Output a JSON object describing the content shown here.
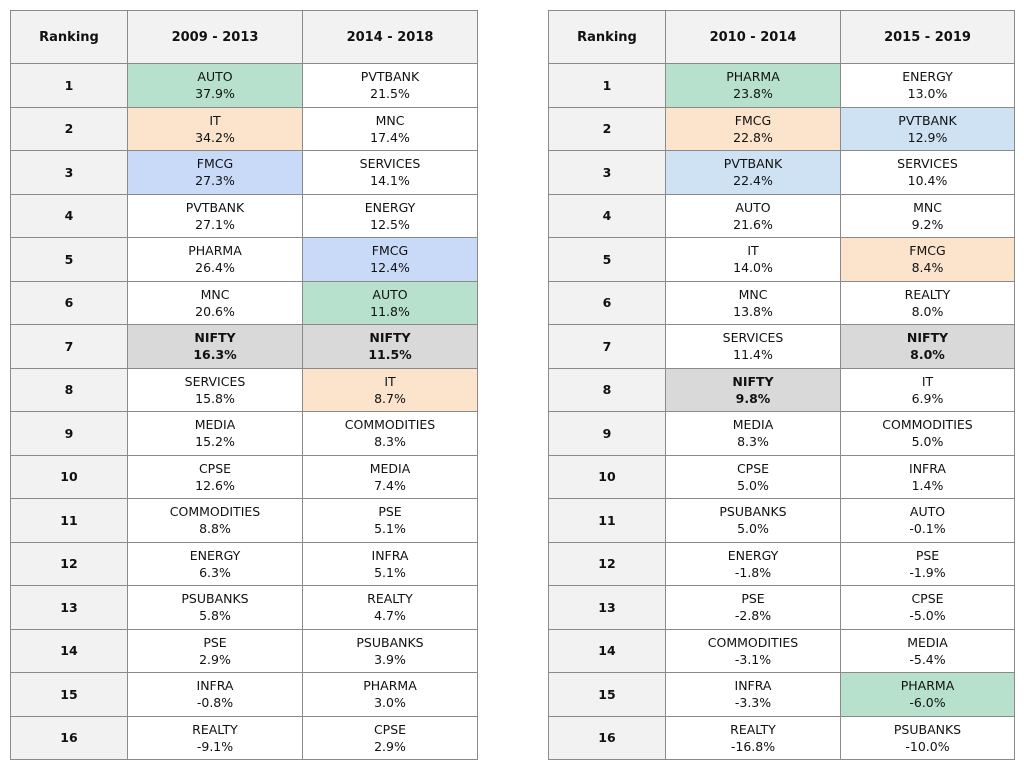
{
  "colors": {
    "green": "#b7e1cd",
    "peach": "#fbe3cc",
    "blue": "#c9daf8",
    "lightblue": "#cfe2f3",
    "gray": "#d9d9d9",
    "header_bg": "#f2f2f2"
  },
  "chart_data": [
    {
      "type": "table",
      "columns": [
        "Ranking",
        "2009 - 2013",
        "2014 - 2018"
      ],
      "rows": [
        {
          "rank": "1",
          "cells": [
            {
              "sector": "AUTO",
              "value": "37.9%",
              "hl": "green"
            },
            {
              "sector": "PVTBANK",
              "value": "21.5%"
            }
          ]
        },
        {
          "rank": "2",
          "cells": [
            {
              "sector": "IT",
              "value": "34.2%",
              "hl": "peach"
            },
            {
              "sector": "MNC",
              "value": "17.4%"
            }
          ]
        },
        {
          "rank": "3",
          "cells": [
            {
              "sector": "FMCG",
              "value": "27.3%",
              "hl": "blue"
            },
            {
              "sector": "SERVICES",
              "value": "14.1%"
            }
          ]
        },
        {
          "rank": "4",
          "cells": [
            {
              "sector": "PVTBANK",
              "value": "27.1%"
            },
            {
              "sector": "ENERGY",
              "value": "12.5%"
            }
          ]
        },
        {
          "rank": "5",
          "cells": [
            {
              "sector": "PHARMA",
              "value": "26.4%"
            },
            {
              "sector": "FMCG",
              "value": "12.4%",
              "hl": "blue"
            }
          ]
        },
        {
          "rank": "6",
          "cells": [
            {
              "sector": "MNC",
              "value": "20.6%"
            },
            {
              "sector": "AUTO",
              "value": "11.8%",
              "hl": "green"
            }
          ]
        },
        {
          "rank": "7",
          "cells": [
            {
              "sector": "NIFTY",
              "value": "16.3%",
              "hl": "gray",
              "bold": true
            },
            {
              "sector": "NIFTY",
              "value": "11.5%",
              "hl": "gray",
              "bold": true
            }
          ]
        },
        {
          "rank": "8",
          "cells": [
            {
              "sector": "SERVICES",
              "value": "15.8%"
            },
            {
              "sector": "IT",
              "value": "8.7%",
              "hl": "peach"
            }
          ]
        },
        {
          "rank": "9",
          "cells": [
            {
              "sector": "MEDIA",
              "value": "15.2%"
            },
            {
              "sector": "COMMODITIES",
              "value": "8.3%"
            }
          ]
        },
        {
          "rank": "10",
          "cells": [
            {
              "sector": "CPSE",
              "value": "12.6%"
            },
            {
              "sector": "MEDIA",
              "value": "7.4%"
            }
          ]
        },
        {
          "rank": "11",
          "cells": [
            {
              "sector": "COMMODITIES",
              "value": "8.8%"
            },
            {
              "sector": "PSE",
              "value": "5.1%"
            }
          ]
        },
        {
          "rank": "12",
          "cells": [
            {
              "sector": "ENERGY",
              "value": "6.3%"
            },
            {
              "sector": "INFRA",
              "value": "5.1%"
            }
          ]
        },
        {
          "rank": "13",
          "cells": [
            {
              "sector": "PSUBANKS",
              "value": "5.8%"
            },
            {
              "sector": "REALTY",
              "value": "4.7%"
            }
          ]
        },
        {
          "rank": "14",
          "cells": [
            {
              "sector": "PSE",
              "value": "2.9%"
            },
            {
              "sector": "PSUBANKS",
              "value": "3.9%"
            }
          ]
        },
        {
          "rank": "15",
          "cells": [
            {
              "sector": "INFRA",
              "value": "-0.8%"
            },
            {
              "sector": "PHARMA",
              "value": "3.0%"
            }
          ]
        },
        {
          "rank": "16",
          "cells": [
            {
              "sector": "REALTY",
              "value": "-9.1%"
            },
            {
              "sector": "CPSE",
              "value": "2.9%"
            }
          ]
        }
      ]
    },
    {
      "type": "table",
      "columns": [
        "Ranking",
        "2010 - 2014",
        "2015 - 2019"
      ],
      "rows": [
        {
          "rank": "1",
          "cells": [
            {
              "sector": "PHARMA",
              "value": "23.8%",
              "hl": "green"
            },
            {
              "sector": "ENERGY",
              "value": "13.0%"
            }
          ]
        },
        {
          "rank": "2",
          "cells": [
            {
              "sector": "FMCG",
              "value": "22.8%",
              "hl": "peach"
            },
            {
              "sector": "PVTBANK",
              "value": "12.9%",
              "hl": "lightblue"
            }
          ]
        },
        {
          "rank": "3",
          "cells": [
            {
              "sector": "PVTBANK",
              "value": "22.4%",
              "hl": "lightblue"
            },
            {
              "sector": "SERVICES",
              "value": "10.4%"
            }
          ]
        },
        {
          "rank": "4",
          "cells": [
            {
              "sector": "AUTO",
              "value": "21.6%"
            },
            {
              "sector": "MNC",
              "value": "9.2%"
            }
          ]
        },
        {
          "rank": "5",
          "cells": [
            {
              "sector": "IT",
              "value": "14.0%"
            },
            {
              "sector": "FMCG",
              "value": "8.4%",
              "hl": "peach"
            }
          ]
        },
        {
          "rank": "6",
          "cells": [
            {
              "sector": "MNC",
              "value": "13.8%"
            },
            {
              "sector": "REALTY",
              "value": "8.0%"
            }
          ]
        },
        {
          "rank": "7",
          "cells": [
            {
              "sector": "SERVICES",
              "value": "11.4%"
            },
            {
              "sector": "NIFTY",
              "value": "8.0%",
              "hl": "gray",
              "bold": true
            }
          ]
        },
        {
          "rank": "8",
          "cells": [
            {
              "sector": "NIFTY",
              "value": "9.8%",
              "hl": "gray",
              "bold": true
            },
            {
              "sector": "IT",
              "value": "6.9%"
            }
          ]
        },
        {
          "rank": "9",
          "cells": [
            {
              "sector": "MEDIA",
              "value": "8.3%"
            },
            {
              "sector": "COMMODITIES",
              "value": "5.0%"
            }
          ]
        },
        {
          "rank": "10",
          "cells": [
            {
              "sector": "CPSE",
              "value": "5.0%"
            },
            {
              "sector": "INFRA",
              "value": "1.4%"
            }
          ]
        },
        {
          "rank": "11",
          "cells": [
            {
              "sector": "PSUBANKS",
              "value": "5.0%"
            },
            {
              "sector": "AUTO",
              "value": "-0.1%"
            }
          ]
        },
        {
          "rank": "12",
          "cells": [
            {
              "sector": "ENERGY",
              "value": "-1.8%"
            },
            {
              "sector": "PSE",
              "value": "-1.9%"
            }
          ]
        },
        {
          "rank": "13",
          "cells": [
            {
              "sector": "PSE",
              "value": "-2.8%"
            },
            {
              "sector": "CPSE",
              "value": "-5.0%"
            }
          ]
        },
        {
          "rank": "14",
          "cells": [
            {
              "sector": "COMMODITIES",
              "value": "-3.1%"
            },
            {
              "sector": "MEDIA",
              "value": "-5.4%"
            }
          ]
        },
        {
          "rank": "15",
          "cells": [
            {
              "sector": "INFRA",
              "value": "-3.3%"
            },
            {
              "sector": "PHARMA",
              "value": "-6.0%",
              "hl": "green"
            }
          ]
        },
        {
          "rank": "16",
          "cells": [
            {
              "sector": "REALTY",
              "value": "-16.8%"
            },
            {
              "sector": "PSUBANKS",
              "value": "-10.0%"
            }
          ]
        }
      ]
    }
  ]
}
